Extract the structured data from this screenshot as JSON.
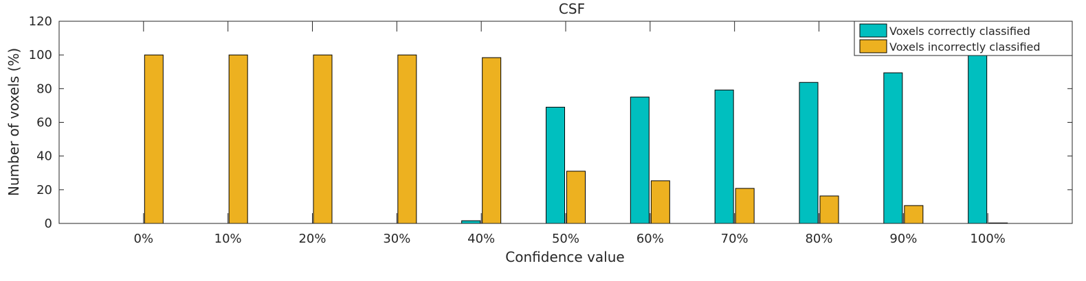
{
  "chart_data": {
    "type": "bar",
    "title": "CSF",
    "xlabel": "Confidence value",
    "ylabel": "Number of voxels (%)",
    "ylim": [
      0,
      120
    ],
    "yticks": [
      0,
      20,
      40,
      60,
      80,
      100,
      120
    ],
    "categories": [
      "0%",
      "10%",
      "20%",
      "30%",
      "40%",
      "50%",
      "60%",
      "70%",
      "80%",
      "90%",
      "100%"
    ],
    "grid": false,
    "legend_position": "top-right",
    "series": [
      {
        "name": "Voxels correctly classified",
        "color": "#00BFBF",
        "values": [
          0,
          0,
          0,
          0,
          1.6,
          69,
          75,
          79.2,
          83.7,
          89.4,
          100
        ]
      },
      {
        "name": "Voxels incorrectly classified",
        "color": "#EDB120",
        "values": [
          100,
          100,
          100,
          100,
          98.4,
          31,
          25.3,
          20.8,
          16.3,
          10.6,
          0.3
        ]
      }
    ]
  }
}
